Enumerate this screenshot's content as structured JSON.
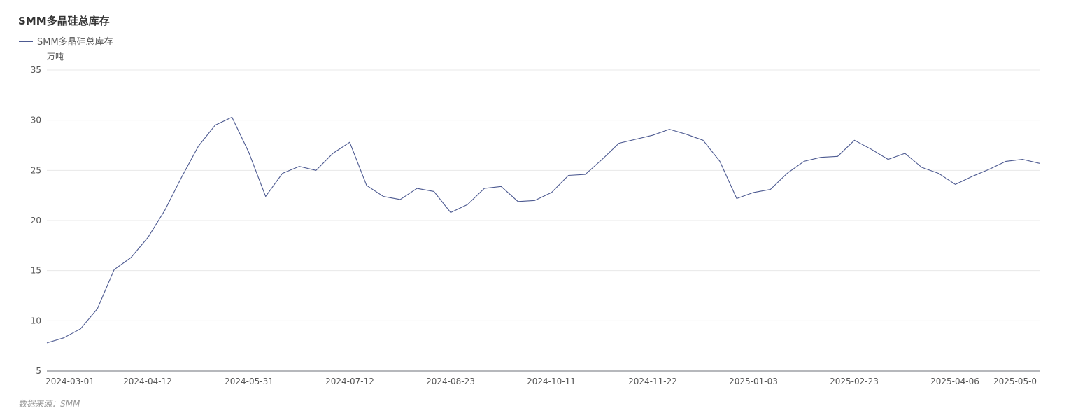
{
  "header": {
    "title": "SMM多晶硅总库存"
  },
  "legend": {
    "label": "SMM多晶硅总库存"
  },
  "unit_label": "万吨",
  "source_text": "数据来源：SMM",
  "colors": {
    "line": "#4d5a91",
    "grid": "#e8e8e8",
    "axis": "#6e7079"
  },
  "chart_data": {
    "type": "line",
    "title": "SMM多晶硅总库存",
    "ylabel": "万吨",
    "xlabel": "",
    "ylim": [
      5,
      35
    ],
    "yticks": [
      5,
      10,
      15,
      20,
      25,
      30,
      35
    ],
    "grid": true,
    "legend_position": "top-left",
    "x_tick_labels": [
      "2024-03-01",
      "2024-04-12",
      "2024-05-31",
      "2024-07-12",
      "2024-08-23",
      "2024-10-11",
      "2024-11-22",
      "2025-01-03",
      "2025-02-23",
      "2025-04-06",
      "2025-05-0"
    ],
    "series": [
      {
        "name": "SMM多晶硅总库存",
        "values": [
          7.8,
          8.3,
          9.2,
          11.2,
          15.1,
          16.3,
          18.3,
          21.0,
          24.3,
          27.4,
          29.5,
          30.3,
          26.8,
          22.4,
          24.7,
          25.4,
          25.0,
          26.7,
          27.8,
          23.5,
          22.4,
          22.1,
          23.2,
          22.9,
          20.8,
          21.6,
          23.2,
          23.4,
          21.9,
          22.0,
          22.8,
          24.5,
          24.6,
          26.1,
          27.7,
          28.1,
          28.5,
          29.1,
          28.6,
          28.0,
          25.9,
          22.2,
          22.8,
          23.1,
          24.7,
          25.9,
          26.3,
          26.4,
          28.0,
          27.1,
          26.1,
          26.7,
          25.3,
          24.7,
          23.6,
          24.4,
          25.1,
          25.9,
          26.1,
          25.7
        ]
      }
    ]
  }
}
